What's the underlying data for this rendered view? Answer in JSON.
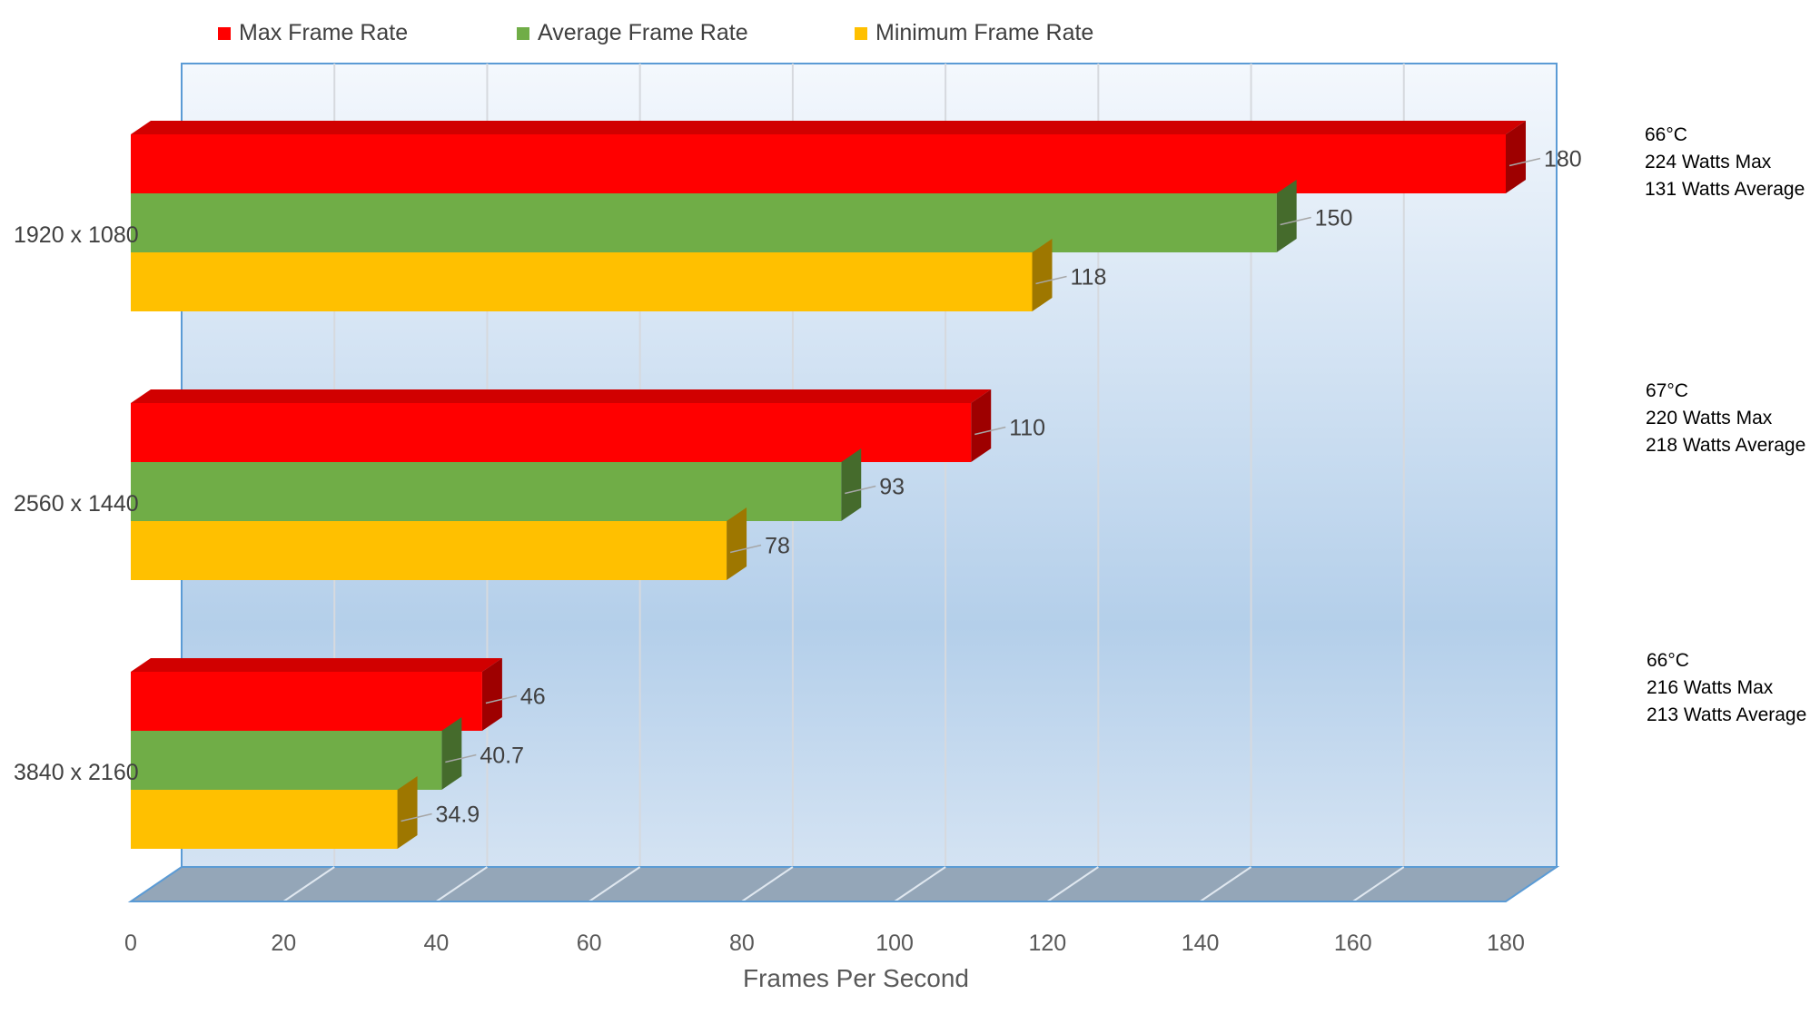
{
  "chart_data": {
    "type": "bar",
    "orientation": "horizontal",
    "style": "3d-clustered",
    "categories": [
      "1920 x 1080",
      "2560 x 1440",
      "3840 x 2160"
    ],
    "series": [
      {
        "name": "Max Frame Rate",
        "color": "#ff0000",
        "values": [
          180,
          110,
          46
        ]
      },
      {
        "name": "Average Frame Rate",
        "color": "#70ad47",
        "values": [
          150,
          93,
          40.7
        ]
      },
      {
        "name": "Minimum Frame Rate",
        "color": "#ffc000",
        "values": [
          118,
          78,
          34.9
        ]
      }
    ],
    "data_labels": [
      [
        "180",
        "110",
        "46"
      ],
      [
        "150",
        "93",
        "40.7"
      ],
      [
        "118",
        "78",
        "34.9"
      ]
    ],
    "xlabel": "Frames Per Second",
    "xlim": [
      0,
      180
    ],
    "xticks": [
      "0",
      "20",
      "40",
      "60",
      "80",
      "100",
      "120",
      "140",
      "160",
      "180"
    ],
    "grid": true,
    "legend_position": "top",
    "annotations": [
      [
        "66°C",
        "224 Watts Max",
        "131 Watts Average"
      ],
      [
        "67°C",
        "220 Watts Max",
        "218 Watts Average"
      ],
      [
        "66°C",
        "216 Watts Max",
        "213 Watts Average"
      ]
    ]
  }
}
